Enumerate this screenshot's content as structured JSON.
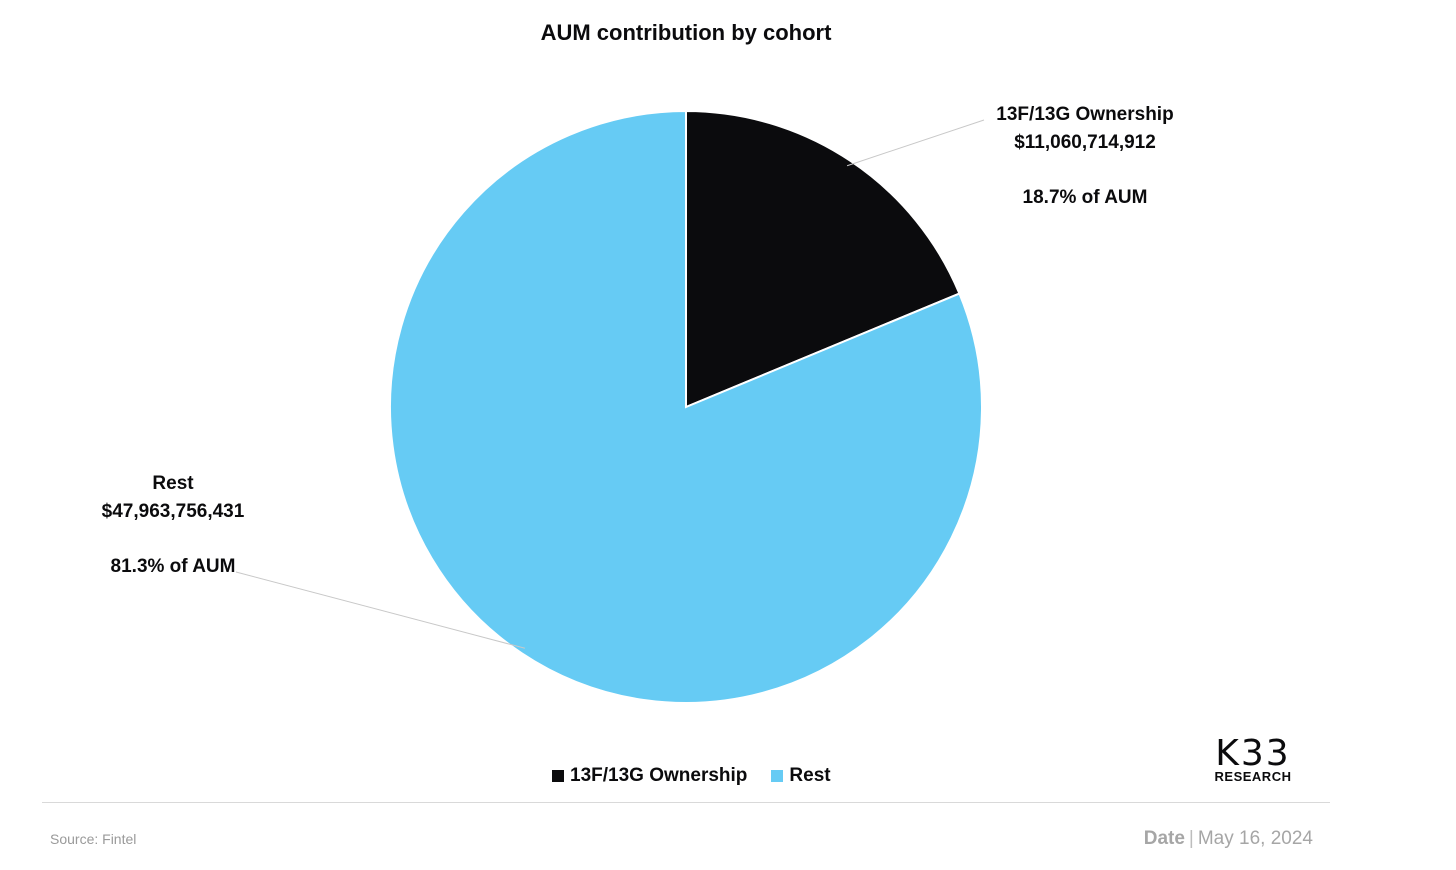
{
  "chart_data": {
    "type": "pie",
    "title": "AUM contribution by cohort",
    "series": [
      {
        "name": "13F/13G Ownership",
        "value": 11060714912,
        "value_label": "$11,060,714,912",
        "percent": 18.7,
        "percent_label": "18.7% of AUM",
        "color": "#0b0b0d"
      },
      {
        "name": "Rest",
        "value": 47963756431,
        "value_label": "$47,963,756,431",
        "percent": 81.3,
        "percent_label": "81.3% of AUM",
        "color": "#66cbf4"
      }
    ],
    "legend_position": "bottom"
  },
  "brand": {
    "logo_main": "K33",
    "logo_sub": "RESEARCH"
  },
  "footer": {
    "source": "Source:  Fintel",
    "date_label": "Date",
    "separator": "|",
    "date_value": "May 16, 2024"
  }
}
